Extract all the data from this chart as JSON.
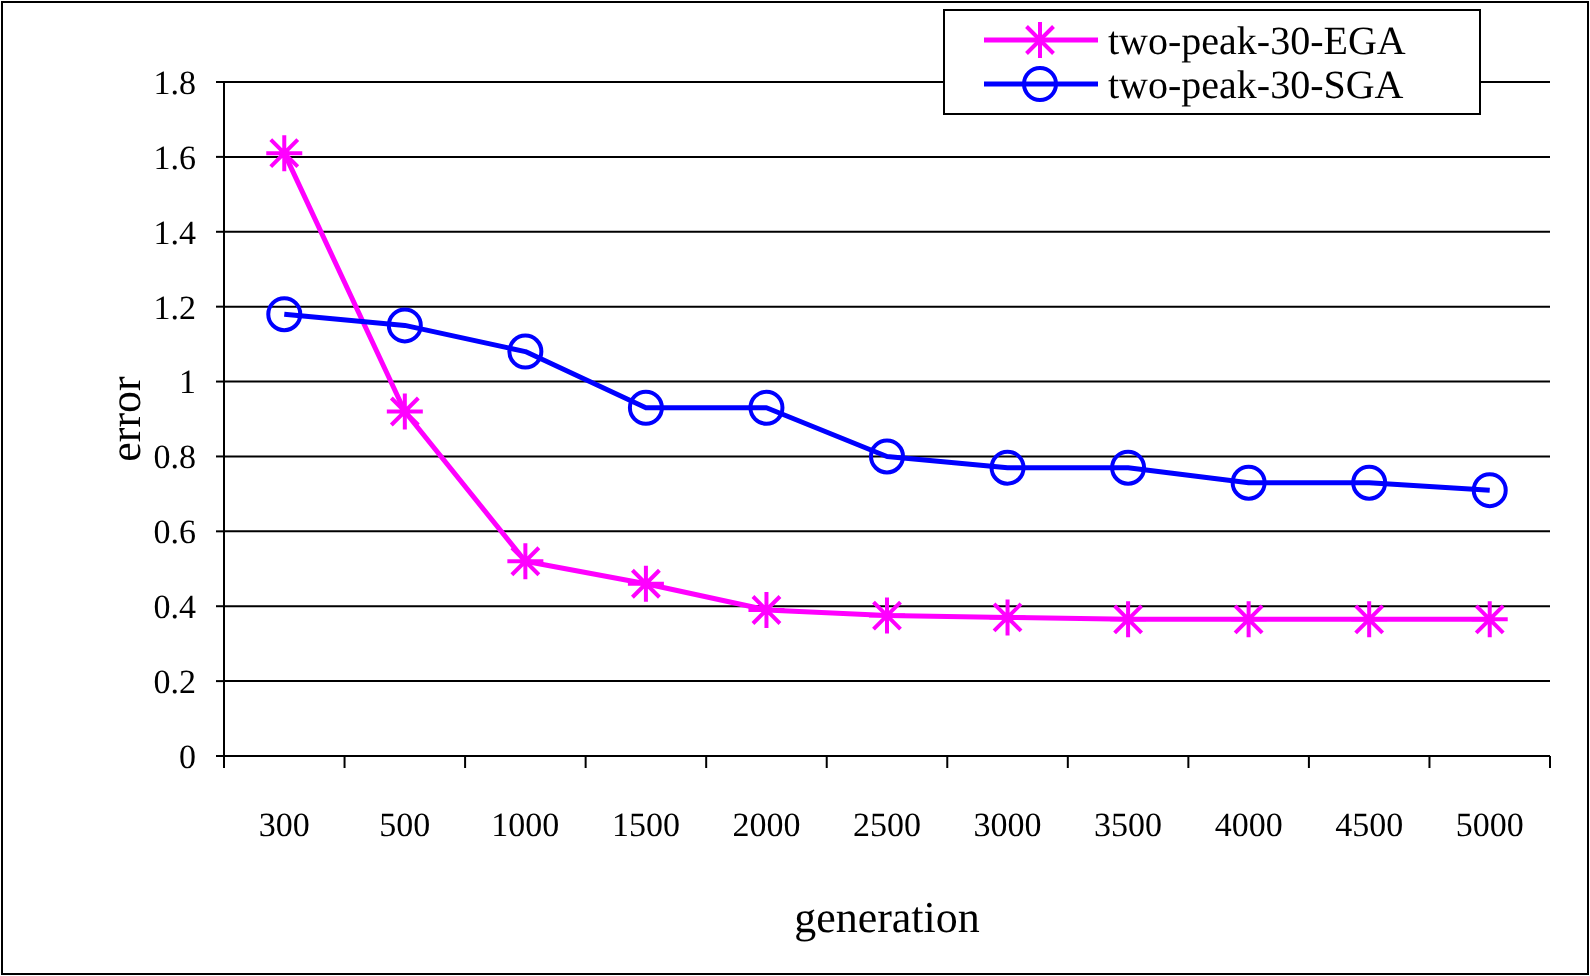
{
  "chart_data": {
    "type": "line",
    "xlabel": "generation",
    "ylabel": "error",
    "categories": [
      "300",
      "500",
      "1000",
      "1500",
      "2000",
      "2500",
      "3000",
      "3500",
      "4000",
      "4500",
      "5000"
    ],
    "series": [
      {
        "name": "two-peak-30-EGA",
        "color": "#ff00ff",
        "marker": "cross",
        "values": [
          1.61,
          0.92,
          0.52,
          0.46,
          0.39,
          0.375,
          0.37,
          0.365,
          0.365,
          0.365,
          0.365
        ]
      },
      {
        "name": "two-peak-30-SGA",
        "color": "#0000ff",
        "marker": "circle",
        "values": [
          1.18,
          1.15,
          1.08,
          0.93,
          0.93,
          0.8,
          0.77,
          0.77,
          0.73,
          0.73,
          0.71
        ]
      }
    ],
    "ylim": [
      0,
      1.8
    ],
    "yticks": [
      0,
      0.2,
      0.4,
      0.6,
      0.8,
      1,
      1.2,
      1.4,
      1.6,
      1.8
    ],
    "grid": "y",
    "legend": "top right"
  }
}
